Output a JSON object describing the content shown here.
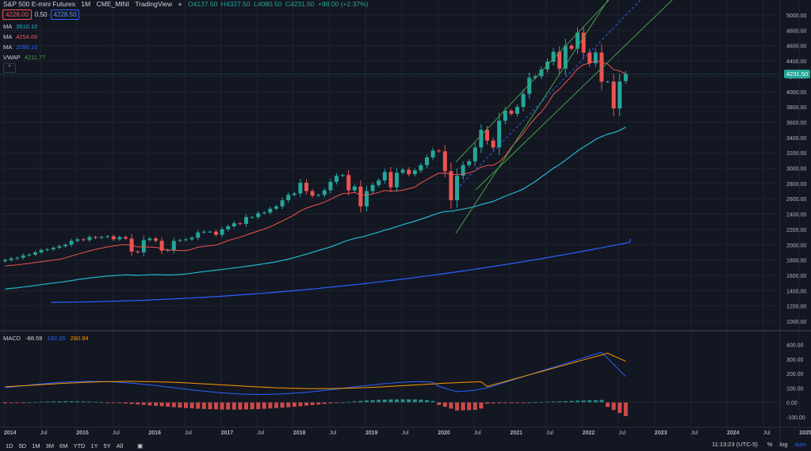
{
  "header": {
    "symbol": "S&P 500 E-mini Futures",
    "interval": "1M",
    "exchange": "CME_MINI",
    "source": "TradingView",
    "ohlc": {
      "o": "O4137.50",
      "h": "H4327.50",
      "l": "L4080.50",
      "c": "C4231.50",
      "chg": "+98.00 (+2.37%)"
    }
  },
  "quote": {
    "sell": "4228.00",
    "spread": "0.50",
    "buy": "4228.50"
  },
  "indicators": [
    {
      "label": "MA",
      "value": "3510.10",
      "color": "#22b8c9"
    },
    {
      "label": "MA",
      "value": "4254.66",
      "color": "#ef5350"
    },
    {
      "label": "MA",
      "value": "2096.10",
      "color": "#2962ff"
    },
    {
      "label": "VWAP",
      "value": "4211.77",
      "color": "#43a047"
    }
  ],
  "last_price": "4231.50",
  "price_axis": [
    "5000.00",
    "4800.00",
    "4600.00",
    "4400.00",
    "4200.00",
    "4000.00",
    "3800.00",
    "3600.00",
    "3400.00",
    "3200.00",
    "3000.00",
    "2800.00",
    "2600.00",
    "2400.00",
    "2200.00",
    "2000.00",
    "1800.00",
    "1600.00",
    "1400.00",
    "1200.00",
    "1000.00"
  ],
  "macd": {
    "label": "MACD",
    "hist": "-88.59",
    "macd": "192.35",
    "signal": "280.94"
  },
  "macd_axis": [
    "400.00",
    "300.00",
    "200.00",
    "100.00",
    "0.00",
    "-100.00"
  ],
  "time_axis": [
    "2014",
    "Jul",
    "2015",
    "Jul",
    "2016",
    "Jul",
    "2017",
    "Jul",
    "2018",
    "Jul",
    "2019",
    "Jul",
    "2020",
    "Jul",
    "2021",
    "Jul",
    "2022",
    "Jul",
    "2023",
    "Jul",
    "2024",
    "Jul",
    "2025"
  ],
  "ranges": [
    "1D",
    "5D",
    "1M",
    "3M",
    "6M",
    "YTD",
    "1Y",
    "5Y",
    "All"
  ],
  "clock": "11:13:23 (UTC-5)",
  "bottom_right": {
    "pct": "%",
    "log": "log",
    "auto": "auto"
  },
  "colors": {
    "up": "#26a69a",
    "down": "#ef5350",
    "bg": "#131722",
    "grid": "#1f2330",
    "text": "#b2b5be",
    "accent": "#2962ff"
  },
  "chart_data": {
    "type": "candlestick",
    "period": "monthly",
    "x_range": [
      "2013-12",
      "2022-07"
    ],
    "candles_close_approx": [
      1800,
      1820,
      1830,
      1860,
      1870,
      1900,
      1930,
      1940,
      1960,
      1980,
      2000,
      2050,
      2070,
      2060,
      2100,
      2090,
      2100,
      2110,
      2070,
      2100,
      2080,
      1910,
      1900,
      2060,
      2080,
      2050,
      1920,
      1930,
      2050,
      2060,
      2070,
      2090,
      2160,
      2170,
      2170,
      2130,
      2200,
      2240,
      2280,
      2270,
      2360,
      2360,
      2410,
      2420,
      2470,
      2500,
      2580,
      2650,
      2670,
      2810,
      2700,
      2640,
      2650,
      2710,
      2820,
      2900,
      2910,
      2710,
      2760,
      2500,
      2700,
      2780,
      2840,
      2950,
      2750,
      2940,
      2980,
      2920,
      2970,
      3040,
      3140,
      3230,
      3220,
      2960,
      2580,
      2900,
      3040,
      3090,
      3270,
      3500,
      3360,
      3270,
      3620,
      3750,
      3710,
      3800,
      3970,
      4180,
      4200,
      4290,
      4390,
      4520,
      4300,
      4600,
      4560,
      4770,
      4510,
      4370,
      4510,
      4130,
      4130,
      3780,
      4130,
      4231
    ]
  }
}
